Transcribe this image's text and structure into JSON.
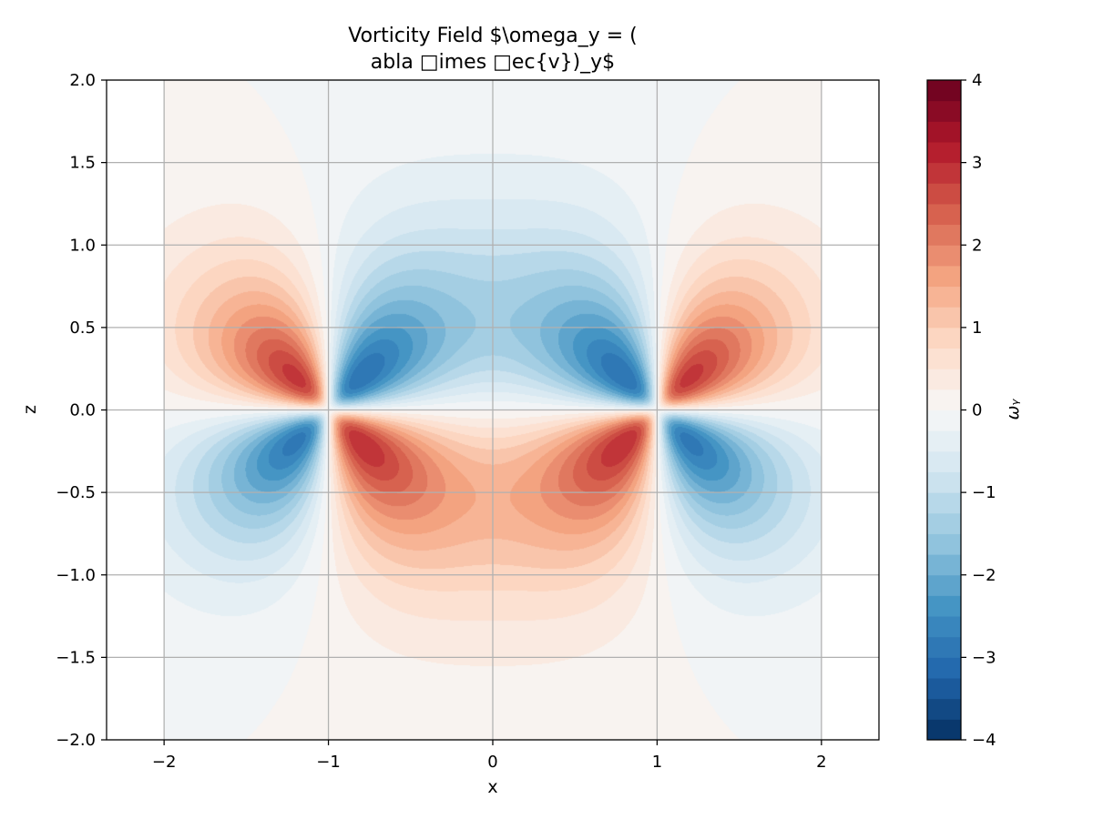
{
  "chart_data": {
    "type": "heatmap",
    "subtype": "filled-contour",
    "title_line1": "Vorticity Field $\\omega_y = (",
    "title_line2": "abla □imes □ec{v})_y$",
    "xlabel": "x",
    "ylabel": "z",
    "colorbar_label": "ωᵧ",
    "colormap": "RdBu_r",
    "xlim": [
      -2.35,
      2.35
    ],
    "ylim": [
      -2.0,
      2.0
    ],
    "x_ticks": [
      -2,
      -1,
      0,
      1,
      2
    ],
    "x_tick_labels": [
      "−2",
      "−1",
      "0",
      "1",
      "2"
    ],
    "y_ticks": [
      -2.0,
      -1.5,
      -1.0,
      -0.5,
      0.0,
      0.5,
      1.0,
      1.5,
      2.0
    ],
    "y_tick_labels": [
      "−2.0",
      "−1.5",
      "−1.0",
      "−0.5",
      "0.0",
      "0.5",
      "1.0",
      "1.5",
      "2.0"
    ],
    "data_extent_x": [
      -2,
      2
    ],
    "colorbar_range": [
      -4,
      4
    ],
    "colorbar_levels": 32,
    "colorbar_ticks": [
      -4,
      -3,
      -2,
      -1,
      0,
      1,
      2,
      3,
      4
    ],
    "colorbar_tick_labels": [
      "−4",
      "−3",
      "−2",
      "−1",
      "0",
      "1",
      "2",
      "3",
      "4"
    ],
    "grid": true,
    "features": [
      {
        "name": "positive-lobe",
        "x": -1.15,
        "z": 0.15,
        "value": 3.3
      },
      {
        "name": "negative-lobe",
        "x": -0.85,
        "z": 0.15,
        "value": -3.3
      },
      {
        "name": "negative-lobe",
        "x": -1.15,
        "z": -0.15,
        "value": -2.8
      },
      {
        "name": "positive-lobe",
        "x": -0.85,
        "z": -0.15,
        "value": 3.7
      },
      {
        "name": "negative-lobe",
        "x": 0.85,
        "z": 0.15,
        "value": -3.3
      },
      {
        "name": "positive-lobe",
        "x": 1.15,
        "z": 0.15,
        "value": 3.3
      },
      {
        "name": "positive-lobe",
        "x": 0.85,
        "z": -0.15,
        "value": 3.7
      },
      {
        "name": "negative-lobe",
        "x": 1.15,
        "z": -0.15,
        "value": -2.8
      }
    ]
  }
}
